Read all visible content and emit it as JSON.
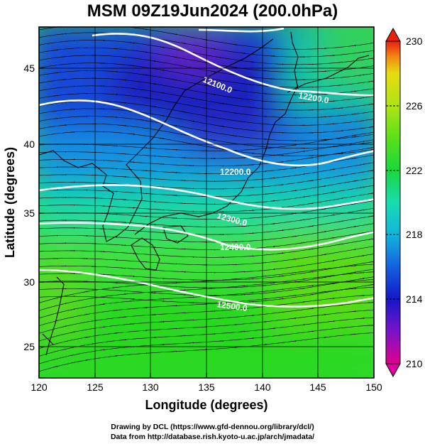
{
  "title": "MSM 09Z19Jun2024 (200.0hPa)",
  "map": {
    "lon_range": [
      120,
      150
    ],
    "lat_range": [
      22.4,
      47.6
    ],
    "xlabel": "Longitude (degrees)",
    "ylabel": "Latitude  (degrees)",
    "x_ticks": [
      "120",
      "125",
      "130",
      "135",
      "140",
      "145",
      "150"
    ],
    "y_ticks": [
      "25",
      "30",
      "35",
      "40",
      "45"
    ],
    "grid": true,
    "field": "temperature shading with streamlines",
    "contour_labels": [
      "12100.0",
      "12200.0",
      "12200.0",
      "12300.0",
      "12400.0",
      "12500.0"
    ]
  },
  "colorbar": {
    "min": 210,
    "max": 230,
    "tick_labels": [
      "230",
      "226",
      "222",
      "218",
      "214",
      "210"
    ],
    "colors": [
      "#e0008c",
      "#7a14c8",
      "#1418c8",
      "#1460e0",
      "#12b4dc",
      "#18dcb0",
      "#18d83c",
      "#5ce018",
      "#aee414",
      "#e8dc10",
      "#f08c10",
      "#e82010"
    ]
  },
  "credits": {
    "line1": "Drawing by DCL (https://www.gfd-dennou.org/library/dcl/)",
    "line2": "Data from http://database.rish.kyoto-u.ac.jp/arch/jmadata/"
  }
}
